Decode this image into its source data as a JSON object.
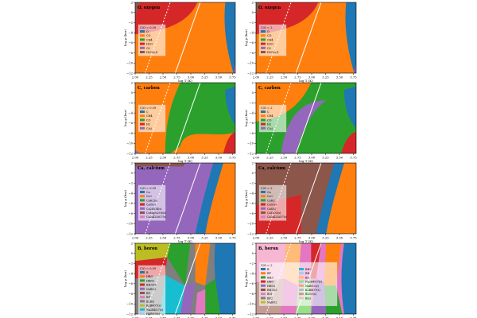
{
  "figure": {
    "xlabel": "log T (K)",
    "ylabel": "log p (bar)",
    "xticks": [
      "2.00",
      "2.25",
      "2.50",
      "2.75",
      "3.00",
      "3.25",
      "3.50",
      "3.75"
    ],
    "yticks": [
      "2",
      "0",
      "−2",
      "−4",
      "−6",
      "−8",
      "−10",
      "−12"
    ]
  },
  "chart_data": [
    {
      "panel": "O-left",
      "type": "area",
      "title": "O, oxygen",
      "ratio": "C/O = 0.59",
      "xlim": [
        2.0,
        3.8
      ],
      "ylim": [
        -12,
        2
      ],
      "legend": [
        {
          "label": "O",
          "color": "#1f77b4"
        },
        {
          "label": "CO",
          "color": "#ff7f0e"
        },
        {
          "label": "CH4",
          "color": "#2ca02c"
        },
        {
          "label": "H2O",
          "color": "#d62728"
        },
        {
          "label": "O2",
          "color": "#9467bd"
        },
        {
          "label": "H2O(s,l)",
          "color": "#8c564b"
        }
      ]
    },
    {
      "panel": "O-right",
      "type": "area",
      "title": "O, oxygen",
      "ratio": "C/O = 2",
      "xlim": [
        2.0,
        3.8
      ],
      "ylim": [
        -12,
        2
      ],
      "legend": [
        {
          "label": "O",
          "color": "#1f77b4"
        },
        {
          "label": "CO",
          "color": "#ff7f0e"
        },
        {
          "label": "CH4",
          "color": "#2ca02c"
        },
        {
          "label": "H2O",
          "color": "#d62728"
        },
        {
          "label": "O2",
          "color": "#9467bd"
        },
        {
          "label": "H2O(s,l)",
          "color": "#8c564b"
        }
      ]
    },
    {
      "panel": "C-left",
      "type": "area",
      "title": "C, carbon",
      "ratio": "C/O = 0.59",
      "xlim": [
        2.0,
        3.8
      ],
      "ylim": [
        -12,
        2
      ],
      "legend": [
        {
          "label": "C",
          "color": "#1f77b4"
        },
        {
          "label": "CH4",
          "color": "#ff7f0e"
        },
        {
          "label": "CO",
          "color": "#2ca02c"
        },
        {
          "label": "H2",
          "color": "#d62728"
        },
        {
          "label": "C(s)",
          "color": "#9467bd"
        }
      ]
    },
    {
      "panel": "C-right",
      "type": "area",
      "title": "C, carbon",
      "ratio": "C/O = 2",
      "xlim": [
        2.0,
        3.8
      ],
      "ylim": [
        -12,
        2
      ],
      "legend": [
        {
          "label": "C",
          "color": "#1f77b4"
        },
        {
          "label": "CH4",
          "color": "#ff7f0e"
        },
        {
          "label": "CO",
          "color": "#2ca02c"
        },
        {
          "label": "H2",
          "color": "#d62728"
        },
        {
          "label": "C(s)",
          "color": "#9467bd"
        }
      ]
    },
    {
      "panel": "Ca-left",
      "type": "area",
      "title": "Ca, calcium",
      "ratio": "C/O = 0.59",
      "xlim": [
        2.0,
        3.8
      ],
      "ylim": [
        -12,
        2
      ],
      "legend": [
        {
          "label": "Ca",
          "color": "#1f77b4"
        },
        {
          "label": "Ca+",
          "color": "#ff7f0e"
        },
        {
          "label": "CaH2(s)",
          "color": "#2ca02c"
        },
        {
          "label": "CaO(s)",
          "color": "#d62728"
        },
        {
          "label": "Ca2SiO4(s)",
          "color": "#9467bd"
        },
        {
          "label": "CaMgSi2O6(s)",
          "color": "#8c564b"
        },
        {
          "label": "Ca2Al2SiO7(s)",
          "color": "#e377c2"
        }
      ]
    },
    {
      "panel": "Ca-right",
      "type": "area",
      "title": "Ca, calcium",
      "ratio": "C/O = 2",
      "xlim": [
        2.0,
        3.8
      ],
      "ylim": [
        -12,
        2
      ],
      "legend": [
        {
          "label": "Ca",
          "color": "#1f77b4"
        },
        {
          "label": "Ca+",
          "color": "#ff7f0e"
        },
        {
          "label": "CaH2",
          "color": "#2ca02c"
        },
        {
          "label": "CaO(s)",
          "color": "#d62728"
        },
        {
          "label": "CaS(s)",
          "color": "#9467bd"
        },
        {
          "label": "CaTiO3(s)",
          "color": "#8c564b"
        },
        {
          "label": "Ca2Al2SiO7(s)",
          "color": "#e377c2"
        }
      ]
    },
    {
      "panel": "B-left",
      "type": "area",
      "title": "B, boron",
      "ratio": "C/O = 0.59",
      "xlim": [
        2.0,
        3.8
      ],
      "ylim": [
        -12,
        2
      ],
      "legend": [
        {
          "label": "B",
          "color": "#1f77b4"
        },
        {
          "label": "HBO",
          "color": "#ff7f0e"
        },
        {
          "label": "HBO2",
          "color": "#2ca02c"
        },
        {
          "label": "BH3O3",
          "color": "#d62728"
        },
        {
          "label": "NaBO2",
          "color": "#9467bd"
        },
        {
          "label": "BO",
          "color": "#8c564b"
        },
        {
          "label": "BF",
          "color": "#e377c2"
        },
        {
          "label": "B2H6",
          "color": "#7f7f7f"
        },
        {
          "label": "K2B4O7(s)",
          "color": "#bcbd22"
        },
        {
          "label": "Na2B4O7(s)",
          "color": "#17becf"
        },
        {
          "label": "H3BO3(s)",
          "color": "#aec7e8"
        }
      ]
    },
    {
      "panel": "B-right",
      "type": "area",
      "title": "B, boron",
      "ratio": "C/O = 2",
      "xlim": [
        2.0,
        3.8
      ],
      "ylim": [
        -12,
        2
      ],
      "legend": [
        {
          "label": "B",
          "color": "#1f77b4"
        },
        {
          "label": "BF",
          "color": "#ff7f0e"
        },
        {
          "label": "BH3",
          "color": "#2ca02c"
        },
        {
          "label": "HBO",
          "color": "#d62728"
        },
        {
          "label": "HBO2",
          "color": "#9467bd"
        },
        {
          "label": "BH3O3",
          "color": "#8c564b"
        },
        {
          "label": "BCl",
          "color": "#e377c2"
        },
        {
          "label": "BF2",
          "color": "#7f7f7f"
        },
        {
          "label": "NaBO2",
          "color": "#bcbd22"
        },
        {
          "label": "BH2",
          "color": "#17becf"
        },
        {
          "label": "BH",
          "color": "#aec7e8"
        },
        {
          "label": "BS",
          "color": "#ffbb78"
        },
        {
          "label": "Na2B4O7(s)",
          "color": "#98df8a"
        },
        {
          "label": "NaBO2(s)",
          "color": "#ff9896"
        },
        {
          "label": "K2B4O7(s)",
          "color": "#c5b0d5"
        },
        {
          "label": "B2O3(s)",
          "color": "#c49c94"
        },
        {
          "label": "B(s)",
          "color": "#f7b6d2"
        }
      ]
    }
  ]
}
